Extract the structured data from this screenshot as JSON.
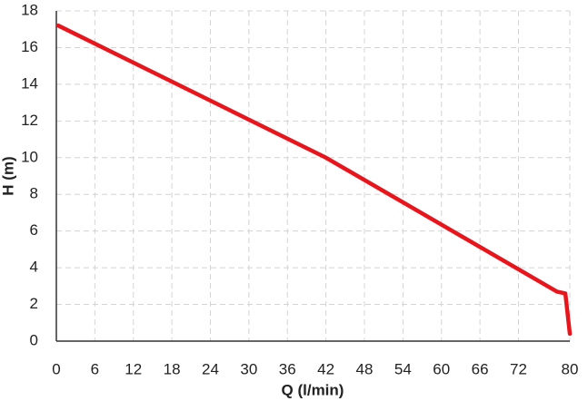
{
  "chart_data": {
    "type": "line",
    "xlabel": "Q (l/min)",
    "ylabel": "H (m)",
    "x": [
      0.3,
      42,
      78,
      79.3,
      80
    ],
    "series": [
      {
        "name": "H",
        "color": "#e8161c",
        "values": [
          17.2,
          10,
          2.7,
          2.6,
          0.4
        ]
      }
    ],
    "xlim": [
      0,
      80
    ],
    "xticks": [
      0,
      6,
      12,
      18,
      24,
      30,
      36,
      42,
      48,
      54,
      60,
      66,
      72,
      80
    ],
    "ylim": [
      0,
      18
    ],
    "yticks": [
      0,
      2,
      4,
      6,
      8,
      10,
      12,
      14,
      16,
      18
    ],
    "grid": true
  }
}
